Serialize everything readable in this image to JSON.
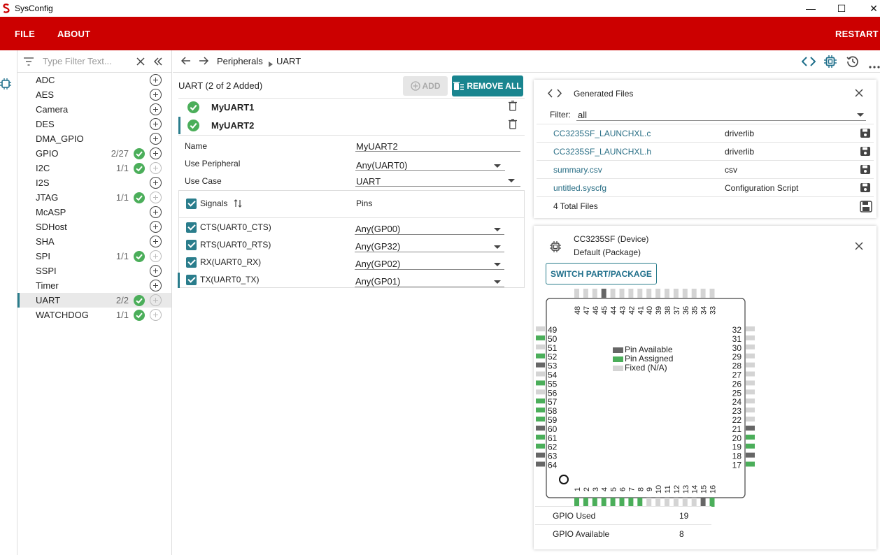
{
  "window": {
    "title": "SysConfig",
    "controls": {
      "minimize": "—",
      "maximize": "☐",
      "close": "✕"
    }
  },
  "menu": {
    "file": "FILE",
    "about": "ABOUT",
    "restart": "RESTART"
  },
  "sidebar": {
    "filter_placeholder": "Type Filter Text...",
    "modules": [
      {
        "name": "ADC",
        "count": "",
        "status": "none"
      },
      {
        "name": "AES",
        "count": "",
        "status": "none"
      },
      {
        "name": "Camera",
        "count": "",
        "status": "none"
      },
      {
        "name": "DES",
        "count": "",
        "status": "none"
      },
      {
        "name": "DMA_GPIO",
        "count": "",
        "status": "none"
      },
      {
        "name": "GPIO",
        "count": "2/27",
        "status": "ok"
      },
      {
        "name": "I2C",
        "count": "1/1",
        "status": "full"
      },
      {
        "name": "I2S",
        "count": "",
        "status": "none"
      },
      {
        "name": "JTAG",
        "count": "1/1",
        "status": "full"
      },
      {
        "name": "McASP",
        "count": "",
        "status": "none"
      },
      {
        "name": "SDHost",
        "count": "",
        "status": "none"
      },
      {
        "name": "SHA",
        "count": "",
        "status": "none"
      },
      {
        "name": "SPI",
        "count": "1/1",
        "status": "full"
      },
      {
        "name": "SSPI",
        "count": "",
        "status": "none"
      },
      {
        "name": "Timer",
        "count": "",
        "status": "none"
      },
      {
        "name": "UART",
        "count": "2/2",
        "status": "full",
        "selected": true
      },
      {
        "name": "WATCHDOG",
        "count": "1/1",
        "status": "full"
      }
    ]
  },
  "breadcrumb": {
    "parent": "Peripherals",
    "current": "UART"
  },
  "module": {
    "heading": "UART (2 of 2 Added)",
    "add_label": "ADD",
    "remove_all_label": "REMOVE ALL",
    "instances": [
      {
        "name": "MyUART1"
      },
      {
        "name": "MyUART2",
        "selected": true
      }
    ],
    "fields": {
      "name_label": "Name",
      "name_value": "MyUART2",
      "peripheral_label": "Use Peripheral",
      "peripheral_value": "Any(UART0)",
      "usecase_label": "Use Case",
      "usecase_value": "UART"
    },
    "signals_header": "Signals",
    "pins_header": "Pins",
    "signals": [
      {
        "name": "CTS(UART0_CTS)",
        "pin": "Any(GP00)"
      },
      {
        "name": "RTS(UART0_RTS)",
        "pin": "Any(GP32)"
      },
      {
        "name": "RX(UART0_RX)",
        "pin": "Any(GP02)"
      },
      {
        "name": "TX(UART0_TX)",
        "pin": "Any(GP01)",
        "selected": true
      }
    ]
  },
  "generated_files": {
    "title": "Generated Files",
    "filter_label": "Filter:",
    "filter_value": "all",
    "files": [
      {
        "name": "CC3235SF_LAUNCHXL.c",
        "type": "driverlib"
      },
      {
        "name": "CC3235SF_LAUNCHXL.h",
        "type": "driverlib"
      },
      {
        "name": "summary.csv",
        "type": "csv"
      },
      {
        "name": "untitled.syscfg",
        "type": "Configuration Script"
      }
    ],
    "total": "4 Total Files"
  },
  "device": {
    "name": "CC3235SF (Device)",
    "package": "Default (Package)",
    "switch_label": "SWITCH PART/PACKAGE",
    "legend": {
      "available": "Pin Available",
      "assigned": "Pin Assigned",
      "fixed": "Fixed (N/A)"
    },
    "colors": {
      "available": "#666666",
      "assigned": "#4bae5a",
      "fixed": "#d4d4d4"
    },
    "pins": {
      "top": [
        48,
        47,
        46,
        45,
        44,
        43,
        42,
        41,
        40,
        39,
        38,
        37,
        36,
        35,
        34,
        33
      ],
      "top_state": [
        "F",
        "F",
        "F",
        "A",
        "F",
        "F",
        "F",
        "F",
        "F",
        "F",
        "F",
        "F",
        "F",
        "F",
        "F",
        "F"
      ],
      "left": [
        49,
        50,
        51,
        52,
        53,
        54,
        55,
        56,
        57,
        58,
        59,
        60,
        61,
        62,
        63,
        64
      ],
      "left_state": [
        "F",
        "G",
        "F",
        "G",
        "A",
        "F",
        "G",
        "F",
        "G",
        "G",
        "G",
        "A",
        "G",
        "G",
        "A",
        "A"
      ],
      "right": [
        32,
        31,
        30,
        29,
        28,
        27,
        26,
        25,
        24,
        23,
        22,
        21,
        20,
        19,
        18,
        17
      ],
      "right_state": [
        "F",
        "F",
        "F",
        "F",
        "F",
        "F",
        "F",
        "F",
        "F",
        "F",
        "F",
        "A",
        "G",
        "G",
        "A",
        "G"
      ],
      "bottom": [
        1,
        2,
        3,
        4,
        5,
        6,
        7,
        8,
        9,
        10,
        11,
        12,
        13,
        14,
        15,
        16
      ],
      "bottom_state": [
        "G",
        "G",
        "G",
        "G",
        "G",
        "G",
        "G",
        "G",
        "F",
        "F",
        "F",
        "F",
        "F",
        "F",
        "A",
        "G"
      ]
    },
    "stats": [
      {
        "label": "GPIO Used",
        "value": "19"
      },
      {
        "label": "GPIO Available",
        "value": "8"
      }
    ]
  }
}
